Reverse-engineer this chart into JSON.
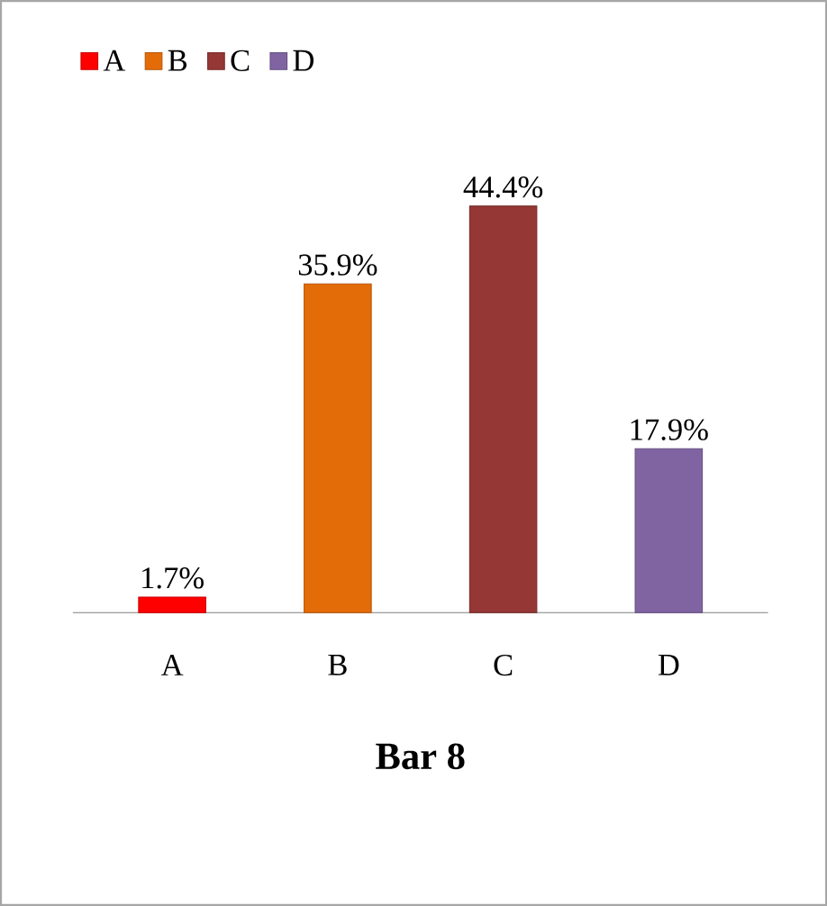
{
  "chart_data": {
    "type": "bar",
    "title": "Bar 8",
    "categories": [
      "A",
      "B",
      "C",
      "D"
    ],
    "series": [
      {
        "name": "A",
        "color": "#ff0000",
        "values": [
          1.7,
          null,
          null,
          null
        ],
        "value_labels": [
          "1.7%",
          null,
          null,
          null
        ]
      },
      {
        "name": "B",
        "color": "#e36c09",
        "values": [
          null,
          35.9,
          null,
          null
        ],
        "value_labels": [
          null,
          "35.9%",
          null,
          null
        ]
      },
      {
        "name": "C",
        "color": "#953735",
        "values": [
          null,
          null,
          44.4,
          null
        ],
        "value_labels": [
          null,
          null,
          "44.4%",
          null
        ]
      },
      {
        "name": "D",
        "color": "#8064a2",
        "values": [
          null,
          null,
          null,
          17.9
        ],
        "value_labels": [
          null,
          null,
          null,
          "17.9%"
        ]
      }
    ],
    "legend": "top left"
  }
}
